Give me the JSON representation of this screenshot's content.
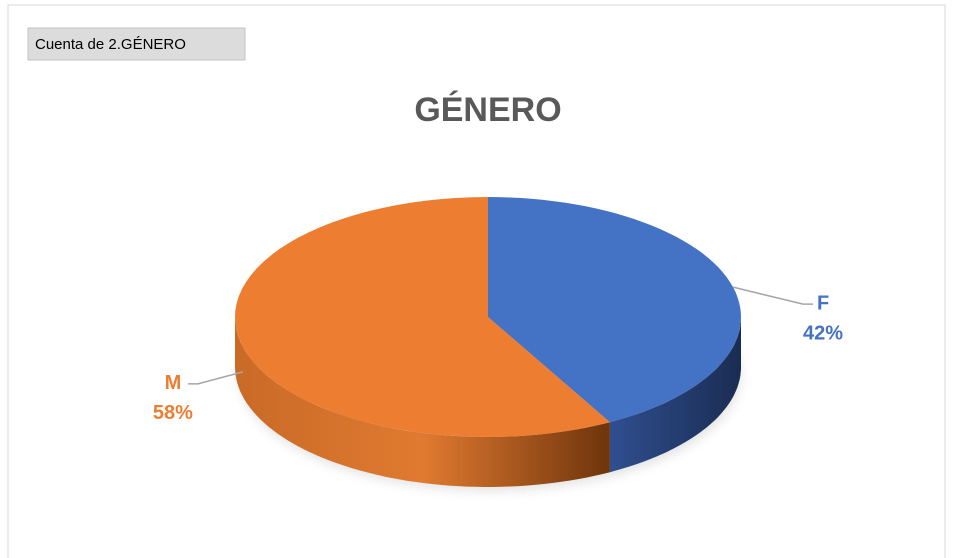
{
  "pivot_field": "Cuenta de 2.GÉNERO",
  "chart_data": {
    "type": "pie3d",
    "title": "GÉNERO",
    "categories": [
      "F",
      "M"
    ],
    "values": [
      42,
      58
    ],
    "value_labels": [
      "42%",
      "58%"
    ],
    "colors": [
      "#4472c4",
      "#ed7d31"
    ],
    "side_colors": [
      "#1f3864",
      "#843c0c"
    ]
  }
}
